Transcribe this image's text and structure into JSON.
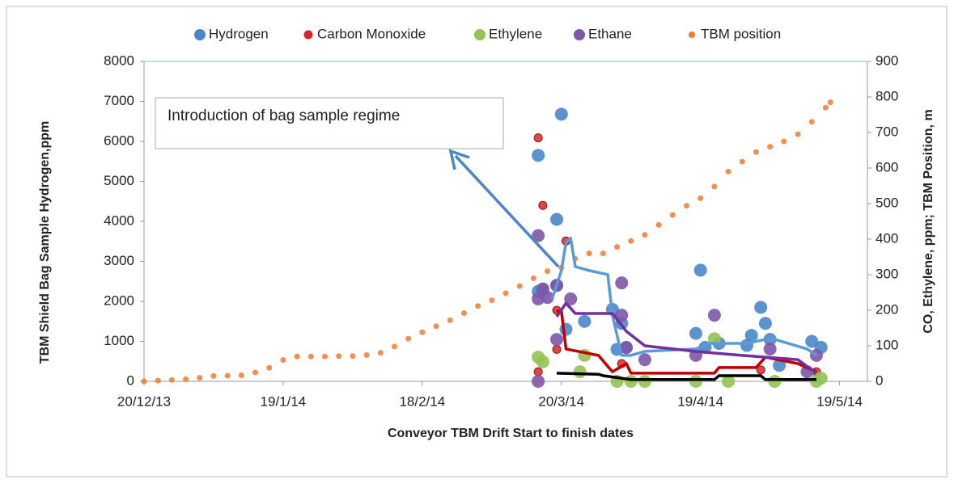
{
  "chart_data": {
    "type": "scatter",
    "x_label": "Conveyor TBM Drift Start to finish dates",
    "y_label": "TBM Shield Bag Sample Hydrogen,ppm",
    "y2_label": "CO, Ethylene, ppm; TBM Position, m",
    "annotation": "Introduction of bag sample regime",
    "xlim": [
      "2013-12-20",
      "2014-05-25"
    ],
    "xticks": [
      {
        "value": "2013-12-20",
        "label": "20/12/13"
      },
      {
        "value": "2014-01-19",
        "label": "19/1/14"
      },
      {
        "value": "2014-02-18",
        "label": "18/2/14"
      },
      {
        "value": "2014-03-20",
        "label": "20/3/14"
      },
      {
        "value": "2014-04-19",
        "label": "19/4/14"
      },
      {
        "value": "2014-05-19",
        "label": "19/5/14"
      }
    ],
    "ylim": [
      0,
      8000
    ],
    "yticks": [
      0,
      1000,
      2000,
      3000,
      4000,
      5000,
      6000,
      7000,
      8000
    ],
    "y2lim": [
      0,
      900
    ],
    "y2ticks": [
      0,
      100,
      200,
      300,
      400,
      500,
      600,
      700,
      800,
      900
    ],
    "legend": "top",
    "grid": false,
    "series": [
      {
        "name": "TBM position",
        "color": "#ed7d31",
        "axis": "y2",
        "size": 3.5,
        "x": [
          "2013-12-20",
          "2013-12-23",
          "2013-12-26",
          "2013-12-29",
          "2014-01-01",
          "2014-01-04",
          "2014-01-07",
          "2014-01-10",
          "2014-01-13",
          "2014-01-16",
          "2014-01-19",
          "2014-01-22",
          "2014-01-25",
          "2014-01-28",
          "2014-01-31",
          "2014-02-03",
          "2014-02-06",
          "2014-02-09",
          "2014-02-12",
          "2014-02-15",
          "2014-02-18",
          "2014-02-21",
          "2014-02-24",
          "2014-02-27",
          "2014-03-02",
          "2014-03-05",
          "2014-03-08",
          "2014-03-11",
          "2014-03-14",
          "2014-03-17",
          "2014-03-20",
          "2014-03-23",
          "2014-03-26",
          "2014-03-29",
          "2014-04-01",
          "2014-04-04",
          "2014-04-07",
          "2014-04-10",
          "2014-04-13",
          "2014-04-16",
          "2014-04-19",
          "2014-04-22",
          "2014-04-25",
          "2014-04-28",
          "2014-05-01",
          "2014-05-04",
          "2014-05-07",
          "2014-05-10",
          "2014-05-13",
          "2014-05-16",
          "2014-05-17"
        ],
        "values": [
          0,
          2,
          4,
          6,
          10,
          15,
          16,
          17,
          25,
          38,
          60,
          70,
          70,
          70,
          71,
          71,
          74,
          80,
          98,
          120,
          138,
          155,
          172,
          192,
          212,
          228,
          248,
          268,
          290,
          310,
          320,
          345,
          360,
          360,
          378,
          395,
          412,
          440,
          468,
          494,
          515,
          548,
          590,
          618,
          645,
          660,
          675,
          695,
          730,
          770,
          785
        ]
      },
      {
        "name": "Hydrogen",
        "color": "#4a86c8",
        "size": 8,
        "x": [
          "2014-03-15",
          "2014-03-15",
          "2014-03-16",
          "2014-03-19",
          "2014-03-20",
          "2014-03-19",
          "2014-03-21",
          "2014-03-25",
          "2014-03-31",
          "2014-04-01",
          "2014-04-02",
          "2014-04-03",
          "2014-04-18",
          "2014-04-19",
          "2014-04-20",
          "2014-04-23",
          "2014-04-29",
          "2014-04-30",
          "2014-05-02",
          "2014-05-03",
          "2014-05-04",
          "2014-05-06",
          "2014-05-13",
          "2014-05-15"
        ],
        "values": [
          2250,
          5650,
          2300,
          4050,
          6680,
          2400,
          1300,
          1500,
          1800,
          800,
          1450,
          850,
          1200,
          2780,
          850,
          950,
          900,
          1150,
          1850,
          1450,
          1050,
          400,
          1000,
          850
        ]
      },
      {
        "name": "Carbon Monoxide",
        "color": "#d62728",
        "axis": "y2",
        "size": 5,
        "x": [
          "2014-03-15",
          "2014-03-16",
          "2014-03-21",
          "2014-03-19",
          "2014-03-19",
          "2014-03-15",
          "2014-04-02",
          "2014-05-02",
          "2014-05-14"
        ],
        "values": [
          685,
          495,
          395,
          200,
          90,
          27,
          50,
          32,
          27
        ]
      },
      {
        "name": "Ethylene",
        "color": "#92c353",
        "axis": "y2",
        "size": 8,
        "x": [
          "2014-03-15",
          "2014-03-16",
          "2014-03-24",
          "2014-03-25",
          "2014-04-01",
          "2014-04-04",
          "2014-04-07",
          "2014-04-18",
          "2014-04-22",
          "2014-04-25",
          "2014-05-05",
          "2014-05-14",
          "2014-05-15"
        ],
        "values": [
          68,
          55,
          27,
          73,
          0,
          0,
          0,
          0,
          120,
          0,
          0,
          0,
          9
        ]
      },
      {
        "name": "Ethane",
        "color": "#7e57a8",
        "axis": "y2",
        "size": 8,
        "x": [
          "2014-03-15",
          "2014-03-16",
          "2014-03-15",
          "2014-03-19",
          "2014-03-17",
          "2014-03-22",
          "2014-03-19",
          "2014-03-15",
          "2014-04-02",
          "2014-04-02",
          "2014-04-03",
          "2014-04-07",
          "2014-04-18",
          "2014-04-22",
          "2014-05-04",
          "2014-05-12",
          "2014-05-14"
        ],
        "values": [
          232,
          260,
          410,
          270,
          236,
          232,
          118,
          0,
          277,
          186,
          95,
          61,
          73,
          186,
          91,
          27,
          73
        ]
      }
    ],
    "trend_lines": [
      {
        "color": "#5b9bd5",
        "x": [
          "2014-03-18",
          "2014-03-20",
          "2014-03-21",
          "2014-03-22",
          "2014-03-23",
          "2014-03-26",
          "2014-03-30",
          "2014-03-31",
          "2014-04-02",
          "2014-04-04",
          "2014-04-07",
          "2014-04-18",
          "2014-04-21",
          "2014-04-29",
          "2014-05-03",
          "2014-05-05",
          "2014-05-12",
          "2014-05-14"
        ],
        "values": [
          2060,
          2770,
          3470,
          3580,
          2870,
          2770,
          2670,
          1660,
          650,
          650,
          750,
          810,
          950,
          950,
          1050,
          1050,
          810,
          650
        ]
      },
      {
        "color": "#c00000",
        "axis": "y2",
        "x": [
          "2014-03-19",
          "2014-03-20",
          "2014-03-21",
          "2014-03-28",
          "2014-03-31",
          "2014-04-03",
          "2014-04-04",
          "2014-04-22",
          "2014-04-23",
          "2014-05-01",
          "2014-05-03",
          "2014-05-10",
          "2014-05-14"
        ],
        "values": [
          198,
          198,
          91,
          73,
          27,
          50,
          23,
          23,
          39,
          39,
          68,
          50,
          27
        ]
      },
      {
        "color": "#7030a0",
        "axis": "y2",
        "x": [
          "2014-03-19",
          "2014-03-21",
          "2014-03-23",
          "2014-03-31",
          "2014-04-03",
          "2014-04-07",
          "2014-04-18",
          "2014-04-28",
          "2014-05-10",
          "2014-05-14"
        ],
        "values": [
          182,
          220,
          191,
          191,
          141,
          100,
          84,
          73,
          61,
          23
        ]
      },
      {
        "color": "#000000",
        "axis": "y2",
        "x": [
          "2014-03-19",
          "2014-03-28",
          "2014-03-29",
          "2014-04-04",
          "2014-04-22",
          "2014-04-23",
          "2014-05-02",
          "2014-05-03",
          "2014-05-14"
        ],
        "values": [
          23,
          20,
          16,
          5,
          5,
          16,
          16,
          5,
          5
        ]
      }
    ]
  }
}
